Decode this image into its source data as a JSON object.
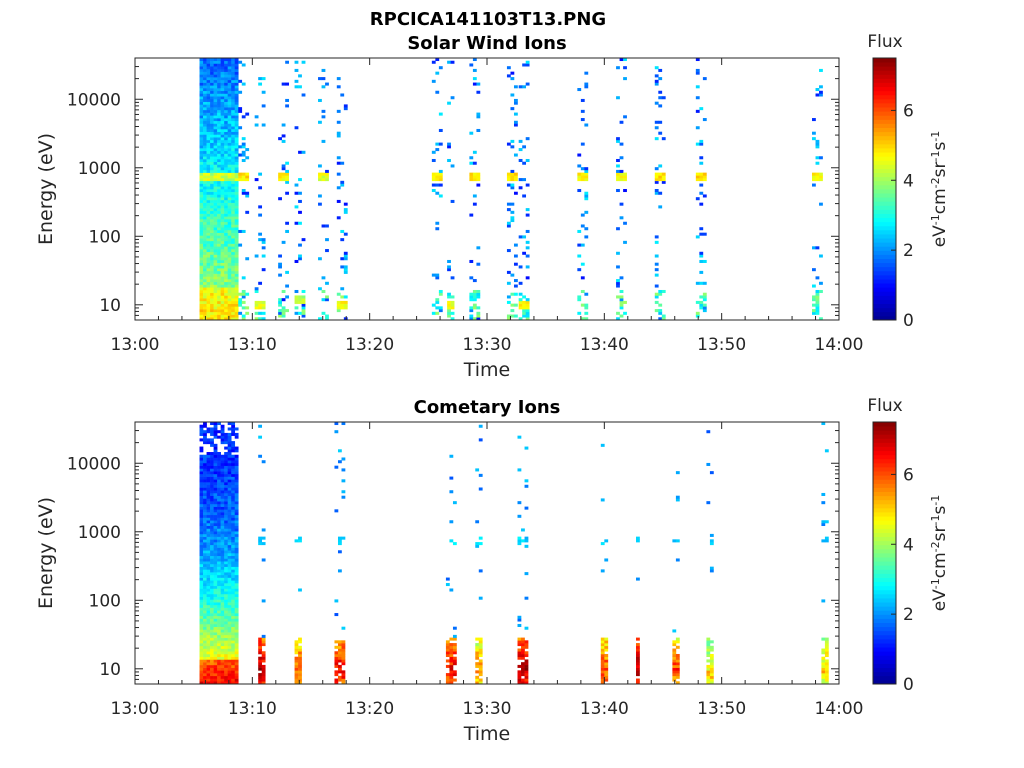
{
  "figure": {
    "title": "RPCICA141103T13.PNG"
  },
  "colors": {
    "axis": "#262626",
    "background": "#ffffff",
    "colormap": [
      "#00008f",
      "#0000ff",
      "#0080ff",
      "#00ffff",
      "#80ff80",
      "#ffff00",
      "#ff8000",
      "#ff0000",
      "#800000"
    ]
  },
  "chart_data": [
    {
      "type": "heatmap",
      "title": "Solar Wind Ions",
      "xlabel": "Time",
      "ylabel": "Energy (eV)",
      "x_ticks": [
        "13:00",
        "13:10",
        "13:20",
        "13:30",
        "13:40",
        "13:50",
        "14:00"
      ],
      "x_range_minutes": [
        0,
        60
      ],
      "y_scale": "log",
      "y_ticks": [
        "10",
        "100",
        "1000",
        "10000"
      ],
      "y_range": [
        6,
        40000
      ],
      "colorbar": {
        "title": "Flux",
        "label": "eV-1cm-2sr-1s-1",
        "ticks": [
          "0",
          "2",
          "4",
          "6"
        ],
        "range": [
          0,
          7.5
        ]
      },
      "bursts": [
        {
          "t": 5.5,
          "w": 3.2,
          "kind": "dense"
        },
        {
          "t": 8.8,
          "w": 0.8,
          "kind": "scatter",
          "peak_e": 750,
          "peak_v": 4.6
        },
        {
          "t": 10.2,
          "w": 1.0,
          "kind": "scatter",
          "peak_e": 10,
          "peak_v": 4.2
        },
        {
          "t": 12.2,
          "w": 0.8,
          "kind": "scatter",
          "peak_e": 750,
          "peak_v": 4.4
        },
        {
          "t": 13.6,
          "w": 0.8,
          "kind": "scatter",
          "peak_e": 12,
          "peak_v": 3.8
        },
        {
          "t": 15.6,
          "w": 0.8,
          "kind": "scatter",
          "peak_e": 750,
          "peak_v": 4.2
        },
        {
          "t": 17.2,
          "w": 0.8,
          "kind": "scatter",
          "peak_e": 10,
          "peak_v": 4.4
        },
        {
          "t": 25.3,
          "w": 0.8,
          "kind": "scatter",
          "peak_e": 750,
          "peak_v": 4.4
        },
        {
          "t": 26.6,
          "w": 0.6,
          "kind": "scatter",
          "peak_e": 10,
          "peak_v": 4.2
        },
        {
          "t": 28.5,
          "w": 0.8,
          "kind": "scatter",
          "peak_e": 750,
          "peak_v": 4.6
        },
        {
          "t": 31.7,
          "w": 0.8,
          "kind": "scatter",
          "peak_e": 750,
          "peak_v": 4.6
        },
        {
          "t": 32.7,
          "w": 0.8,
          "kind": "scatter",
          "peak_e": 10,
          "peak_v": 4.4
        },
        {
          "t": 37.7,
          "w": 0.8,
          "kind": "scatter",
          "peak_e": 750,
          "peak_v": 4.4
        },
        {
          "t": 41.0,
          "w": 0.8,
          "kind": "scatter",
          "peak_e": 750,
          "peak_v": 4.4
        },
        {
          "t": 44.3,
          "w": 0.8,
          "kind": "scatter",
          "peak_e": 750,
          "peak_v": 4.6
        },
        {
          "t": 47.8,
          "w": 0.8,
          "kind": "scatter",
          "peak_e": 750,
          "peak_v": 4.6
        },
        {
          "t": 57.7,
          "w": 0.8,
          "kind": "scatter",
          "peak_e": 750,
          "peak_v": 4.4
        }
      ]
    },
    {
      "type": "heatmap",
      "title": "Cometary Ions",
      "xlabel": "Time",
      "ylabel": "Energy (eV)",
      "x_ticks": [
        "13:00",
        "13:10",
        "13:20",
        "13:30",
        "13:40",
        "13:50",
        "14:00"
      ],
      "x_range_minutes": [
        0,
        60
      ],
      "y_scale": "log",
      "y_ticks": [
        "10",
        "100",
        "1000",
        "10000"
      ],
      "y_range": [
        6,
        40000
      ],
      "colorbar": {
        "title": "Flux",
        "label": "eV-1cm-2sr-1s-1",
        "ticks": [
          "0",
          "2",
          "4",
          "6"
        ],
        "range": [
          0,
          7.5
        ]
      },
      "bursts": [
        {
          "t": 5.5,
          "w": 3.2,
          "kind": "dense_low"
        },
        {
          "t": 10.5,
          "w": 0.6,
          "kind": "low",
          "peak_e": 10,
          "peak_v": 6.5
        },
        {
          "t": 13.6,
          "w": 0.6,
          "kind": "low",
          "peak_e": 10,
          "peak_v": 5.5
        },
        {
          "t": 17.0,
          "w": 0.8,
          "kind": "low",
          "peak_e": 10,
          "peak_v": 6.0
        },
        {
          "t": 26.5,
          "w": 0.8,
          "kind": "low",
          "peak_e": 10,
          "peak_v": 6.0
        },
        {
          "t": 29.0,
          "w": 0.6,
          "kind": "low",
          "peak_e": 10,
          "peak_v": 5.0
        },
        {
          "t": 32.6,
          "w": 0.8,
          "kind": "low",
          "peak_e": 10,
          "peak_v": 6.5
        },
        {
          "t": 39.7,
          "w": 0.6,
          "kind": "low",
          "peak_e": 10,
          "peak_v": 5.5
        },
        {
          "t": 42.7,
          "w": 0.4,
          "kind": "low",
          "peak_e": 10,
          "peak_v": 6.5
        },
        {
          "t": 45.8,
          "w": 0.6,
          "kind": "low",
          "peak_e": 10,
          "peak_v": 5.5
        },
        {
          "t": 48.7,
          "w": 0.6,
          "kind": "low",
          "peak_e": 8,
          "peak_v": 4.5
        },
        {
          "t": 58.5,
          "w": 0.5,
          "kind": "low",
          "peak_e": 10,
          "peak_v": 4.5
        }
      ]
    }
  ]
}
